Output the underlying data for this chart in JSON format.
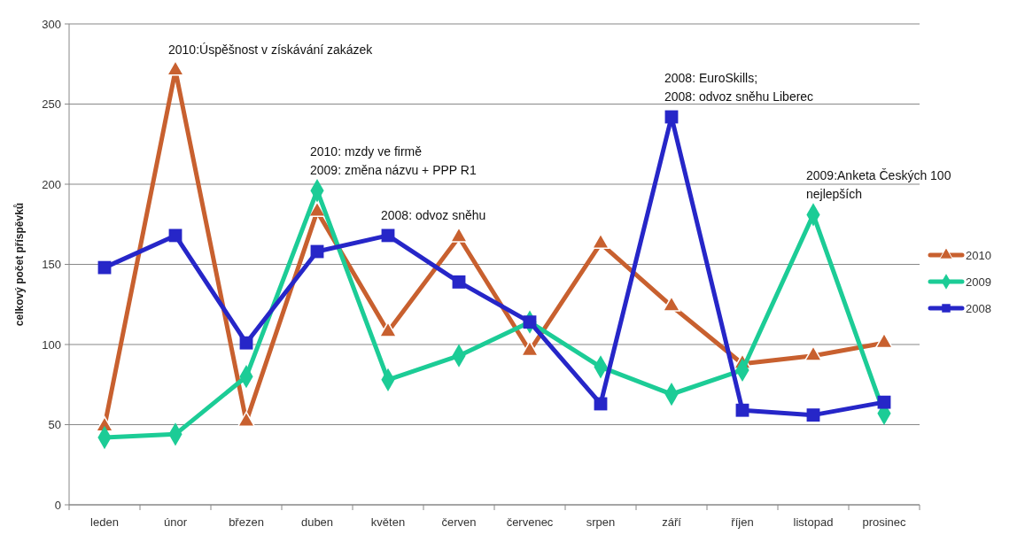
{
  "chart_data": {
    "type": "line",
    "ylabel": "celkový počet příspěvků",
    "categories": [
      "leden",
      "únor",
      "březen",
      "duben",
      "květen",
      "červen",
      "červenec",
      "srpen",
      "září",
      "říjen",
      "listopad",
      "prosinec"
    ],
    "series": [
      {
        "name": "2010",
        "color": "#c8602f",
        "marker": "triangle",
        "values": [
          49,
          271,
          52,
          183,
          108,
          167,
          96,
          163,
          124,
          88,
          93,
          101
        ]
      },
      {
        "name": "2009",
        "color": "#1ccc96",
        "marker": "diamond",
        "values": [
          42,
          44,
          80,
          196,
          78,
          93,
          114,
          86,
          69,
          84,
          181,
          57
        ]
      },
      {
        "name": "2008",
        "color": "#2626c8",
        "marker": "square",
        "values": [
          148,
          168,
          101,
          158,
          168,
          139,
          114,
          63,
          242,
          59,
          56,
          64
        ]
      }
    ],
    "ylim": [
      0,
      300
    ],
    "yticks": [
      0,
      50,
      100,
      150,
      200,
      250,
      300
    ],
    "grid": "y",
    "legend": "right",
    "annotations": [
      {
        "text": "2010:Úspěšnost v získávání zakázek",
        "x": "únor",
        "y": 271
      },
      {
        "text": "2010: mzdy ve firmě\n2009: změna názvu + PPP R1",
        "x": "duben",
        "y": 196
      },
      {
        "text": "2008: odvoz sněhu",
        "x": "květen",
        "y": 168
      },
      {
        "text": "2008: EuroSkills;\n2008: odvoz sněhu Liberec",
        "x": "září",
        "y": 242
      },
      {
        "text": "2009:Anketa Českých 100\nnejlepších",
        "x": "listopad",
        "y": 181
      }
    ]
  }
}
